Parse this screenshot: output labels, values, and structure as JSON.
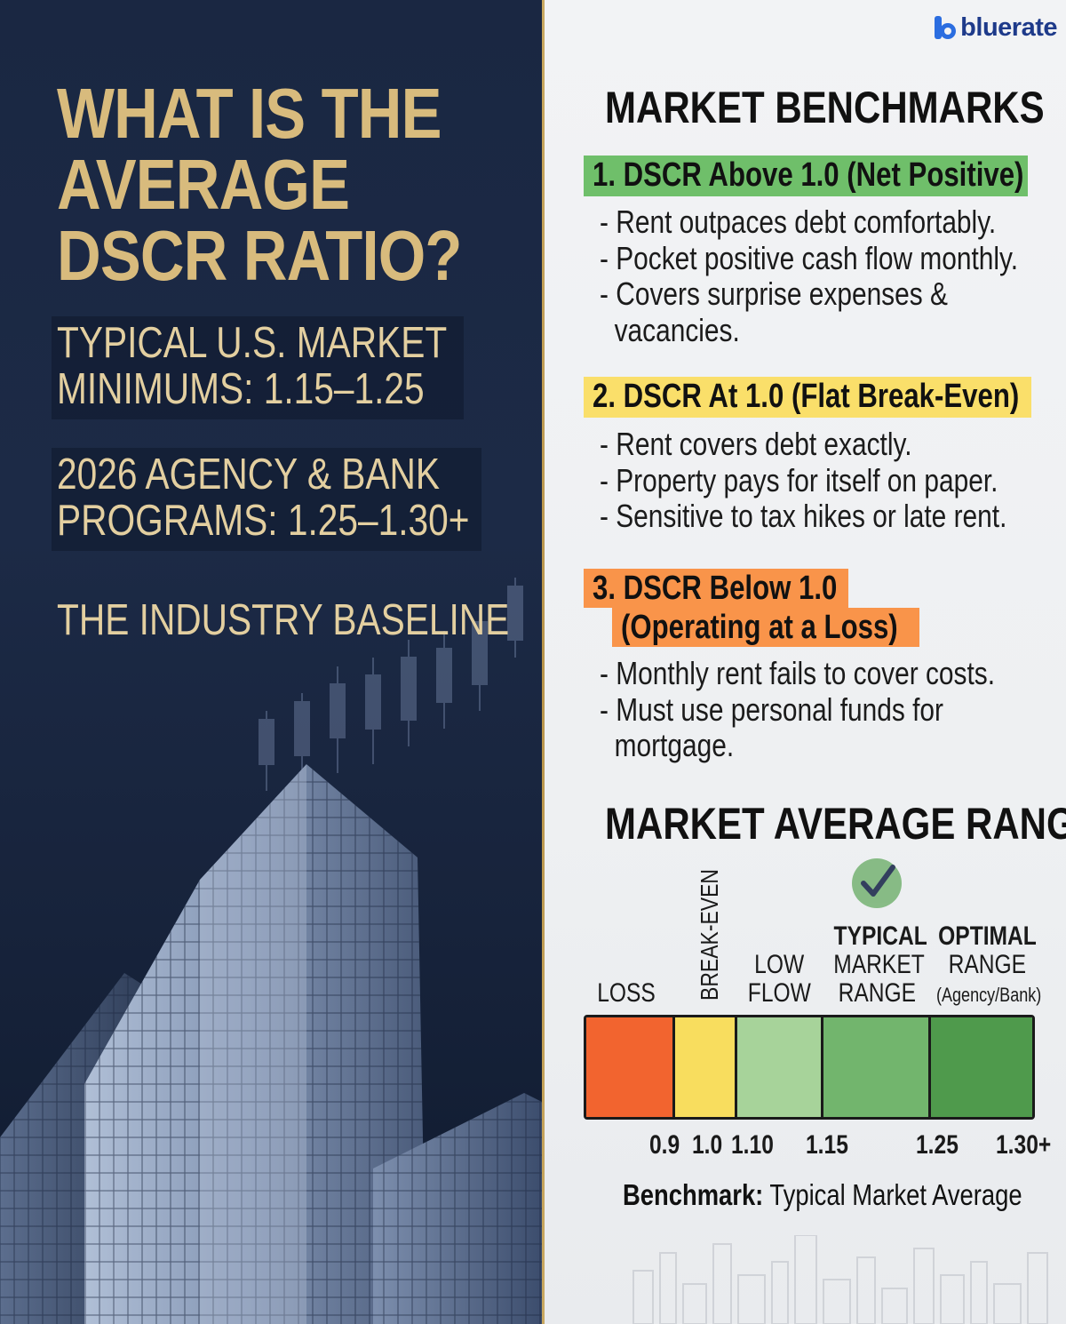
{
  "brand": {
    "name": "bluerate",
    "accent": "#2b6de0"
  },
  "left": {
    "title_lines": [
      "WHAT IS THE",
      "AVERAGE",
      "DSCR RATIO?"
    ],
    "stat1_lines": [
      "TYPICAL U.S. MARKET",
      "MINIMUMS: 1.15–1.25"
    ],
    "stat2_lines": [
      "2026 AGENCY & BANK",
      "PROGRAMS: 1.25–1.30+"
    ],
    "stat3": "THE INDUSTRY BASELINE",
    "title_color": "#d8bb7d"
  },
  "benchmarks": {
    "title": "MARKET BENCHMARKS",
    "items": [
      {
        "heading": "1. DSCR Above 1.0 (Net Positive)",
        "color": "#6fbf6a",
        "bullets": [
          "- Rent outpaces debt comfortably.",
          "- Pocket positive cash flow monthly.",
          "- Covers surprise expenses &",
          "vacancies."
        ]
      },
      {
        "heading": "2. DSCR At 1.0 (Flat Break-Even)",
        "color": "#fadf6a",
        "bullets": [
          "- Rent covers debt exactly.",
          "- Property pays for itself on paper.",
          "- Sensitive to tax hikes or late rent."
        ]
      },
      {
        "heading_lines": [
          "3. DSCR Below 1.0",
          "(Operating at a Loss)"
        ],
        "color": "#f9944a",
        "bullets": [
          "- Monthly rent fails to cover costs.",
          "- Must use personal funds for",
          "mortgage."
        ]
      }
    ]
  },
  "range": {
    "title": "MARKET AVERAGE RANGE",
    "check_icon": "checkmark-circle-icon",
    "segments": [
      {
        "label": "LOSS",
        "color": "#f2642f"
      },
      {
        "label": "BREAK-EVEN",
        "color": "#f8dd5e"
      },
      {
        "label_lines": [
          "LOW",
          "FLOW"
        ],
        "color": "#a7d39a"
      },
      {
        "label_lines": [
          "TYPICAL",
          "MARKET",
          "RANGE"
        ],
        "color": "#72b56d"
      },
      {
        "label_lines": [
          "OPTIMAL",
          "RANGE",
          "(Agency/Bank)"
        ],
        "color": "#4f9a4c"
      }
    ],
    "ticks": [
      "0.9",
      "1.0",
      "1.10",
      "1.15",
      "1.25",
      "1.30+"
    ],
    "benchmark_label": "Benchmark:",
    "benchmark_value": "Typical Market Average"
  }
}
